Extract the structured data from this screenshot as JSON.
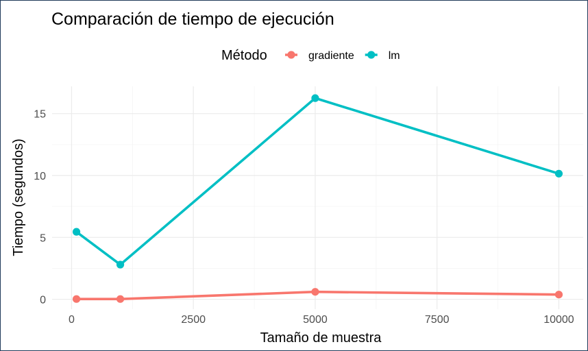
{
  "chart_data": {
    "type": "line",
    "title": "Comparación de tiempo de ejecución",
    "xlabel": "Tamaño de muestra",
    "ylabel": "Tiempo (segundos)",
    "x": [
      100,
      1000,
      5000,
      10000
    ],
    "series": [
      {
        "name": "gradiente",
        "color": "#F8766D",
        "values": [
          0.02,
          0.02,
          0.6,
          0.38
        ]
      },
      {
        "name": "lm",
        "color": "#00BFC4",
        "values": [
          5.45,
          2.8,
          16.25,
          10.15
        ]
      }
    ],
    "xlim": [
      -400,
      10500
    ],
    "ylim": [
      -0.8,
      17.2
    ],
    "x_ticks": [
      0,
      2500,
      5000,
      7500,
      10000
    ],
    "x_tick_labels": [
      "0",
      "2500",
      "5000",
      "7500",
      "10000"
    ],
    "y_ticks": [
      0,
      5,
      10,
      15
    ],
    "y_tick_labels": [
      "0",
      "5",
      "10",
      "15"
    ],
    "grid": true,
    "legend": {
      "title": "Método",
      "placement": "top"
    }
  }
}
